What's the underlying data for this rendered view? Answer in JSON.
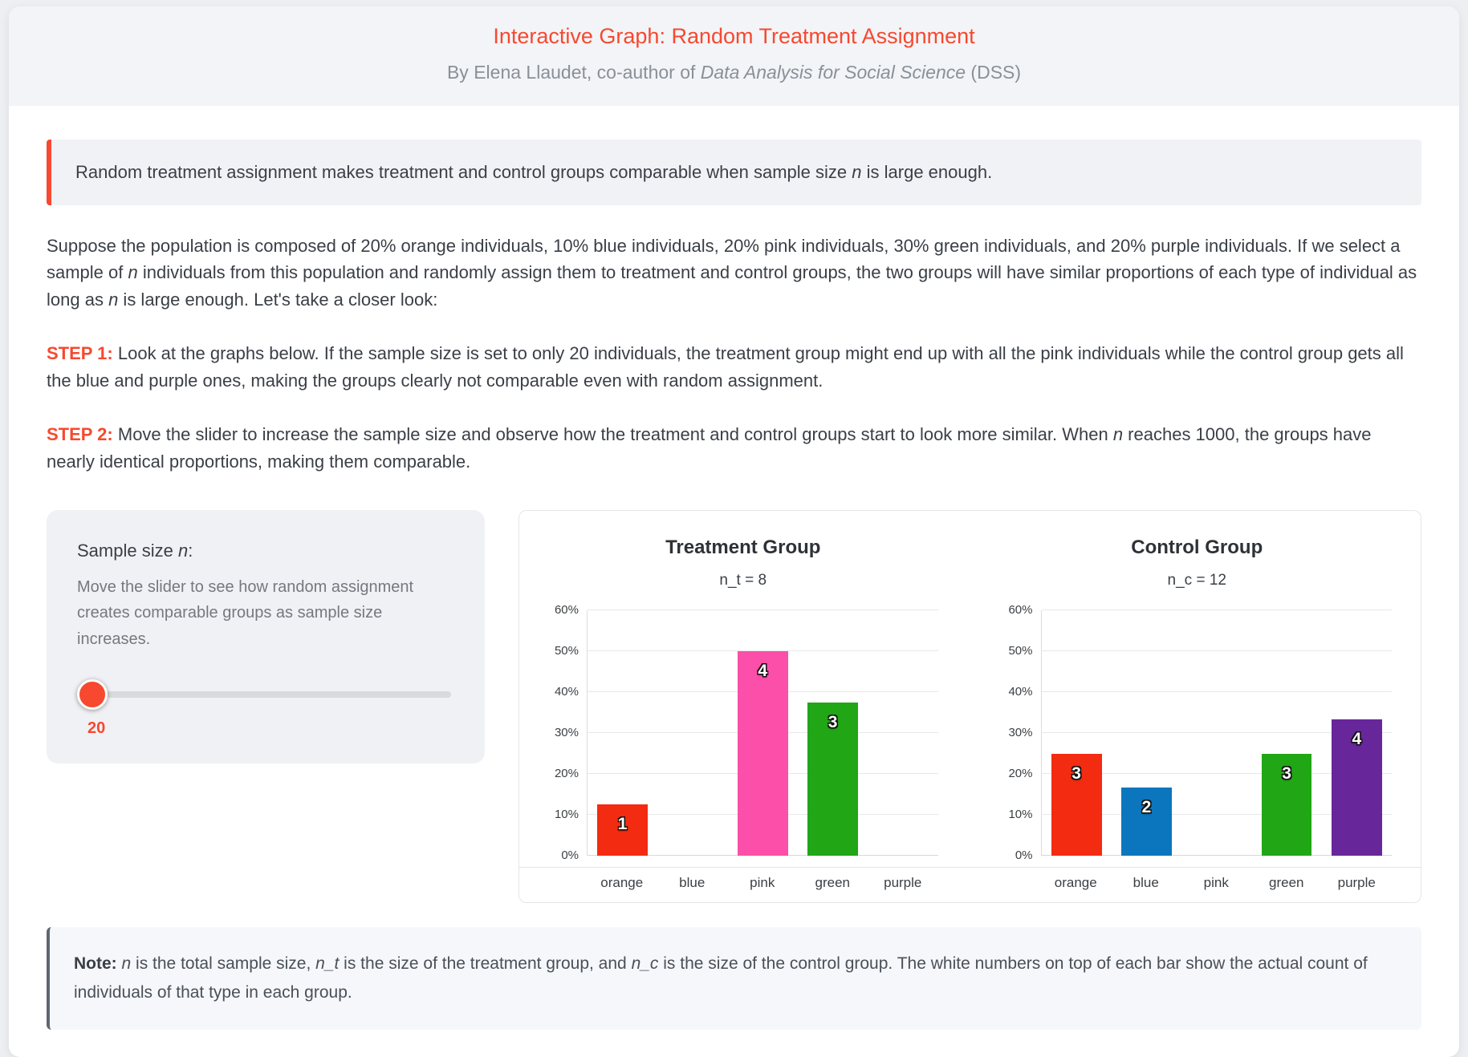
{
  "colors": {
    "accent": "#f6492f",
    "note_border": "#5d6772",
    "slider_track": "#d9dadc",
    "page_background": "#edeff3",
    "panel_background": "#f0f1f4"
  },
  "header": {
    "title": "Interactive Graph: Random Treatment Assignment",
    "byline_prefix": "By Elena Llaudet, co-author of ",
    "byline_book": "Data Analysis for Social Science",
    "byline_suffix": " (DSS)"
  },
  "callout": {
    "pre": "Random treatment assignment makes treatment and control groups comparable when sample size ",
    "var": "n",
    "post": " is large enough."
  },
  "intro": {
    "p1": "Suppose the population is composed of 20% orange individuals, 10% blue individuals, 20% pink individuals, 30% green individuals, and 20% purple individuals. If we select a sample of ",
    "var1": "n",
    "p2": " individuals from this population and randomly assign them to treatment and control groups, the two groups will have similar proportions of each type of individual as long as ",
    "var2": "n",
    "p3": " is large enough. Let's take a closer look:"
  },
  "step1": {
    "label": "STEP 1:",
    "text": " Look at the graphs below. If the sample size is set to only 20 individuals, the treatment group might end up with all the pink individuals while the control group gets all the blue and purple ones, making the groups clearly not comparable even with random assignment."
  },
  "step2": {
    "label": "STEP 2:",
    "pre": " Move the slider to increase the sample size and observe how the treatment and control groups start to look more similar. When ",
    "var": "n",
    "post": " reaches 1000, the groups have nearly identical proportions, making them comparable."
  },
  "slider": {
    "heading_pre": "Sample size ",
    "heading_var": "n",
    "heading_post": ":",
    "description": "Move the slider to see how random assignment creates comparable groups as sample size increases.",
    "value": "20"
  },
  "note": {
    "label": "Note:",
    "s1": " ",
    "v1": "n",
    "s2": " is the total sample size, ",
    "v2": "n_t",
    "s3": " is the size of the treatment group, and ",
    "v3": "n_c",
    "s4": " is the size of the control group. The white numbers on top of each bar show the actual count of individuals of that type in each group."
  },
  "chart_data": [
    {
      "type": "bar",
      "title": "Treatment Group",
      "subtitle": "n_t = 8",
      "n": 8,
      "categories": [
        "orange",
        "blue",
        "pink",
        "green",
        "purple"
      ],
      "counts": [
        1,
        0,
        4,
        3,
        0
      ],
      "values_pct": [
        12.5,
        0,
        50,
        37.5,
        0
      ],
      "bar_colors": [
        "#f32b10",
        "#0b76be",
        "#fb4fa9",
        "#21a616",
        "#68269b"
      ],
      "ylabel": "",
      "xlabel": "",
      "ylim": [
        0,
        60
      ],
      "yticks": [
        "0%",
        "10%",
        "20%",
        "30%",
        "40%",
        "50%",
        "60%"
      ],
      "grid": true,
      "legend": false
    },
    {
      "type": "bar",
      "title": "Control Group",
      "subtitle": "n_c = 12",
      "n": 12,
      "categories": [
        "orange",
        "blue",
        "pink",
        "green",
        "purple"
      ],
      "counts": [
        3,
        2,
        0,
        3,
        4
      ],
      "values_pct": [
        25,
        16.7,
        0,
        25,
        33.3
      ],
      "bar_colors": [
        "#f32b10",
        "#0b76be",
        "#fb4fa9",
        "#21a616",
        "#68269b"
      ],
      "ylabel": "",
      "xlabel": "",
      "ylim": [
        0,
        60
      ],
      "yticks": [
        "0%",
        "10%",
        "20%",
        "30%",
        "40%",
        "50%",
        "60%"
      ],
      "grid": true,
      "legend": false
    }
  ]
}
